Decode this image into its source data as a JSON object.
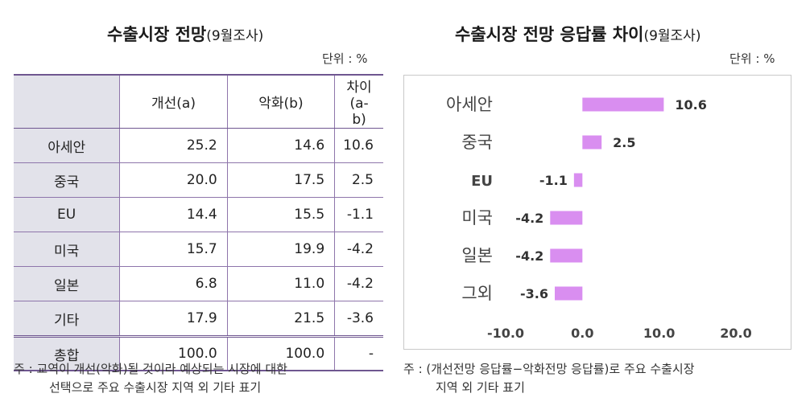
{
  "left": {
    "title": "수출시장 전망",
    "title_sub": "(9월조사)",
    "unit": "단위 : %",
    "table": {
      "headers": [
        "",
        "개선(a)",
        "악화(b)",
        "차이(a-b)"
      ],
      "rows": [
        [
          "아세안",
          "25.2",
          "14.6",
          "10.6"
        ],
        [
          "중국",
          "20.0",
          "17.5",
          "2.5"
        ],
        [
          "EU",
          "14.4",
          "15.5",
          "-1.1"
        ],
        [
          "미국",
          "15.7",
          "19.9",
          "-4.2"
        ],
        [
          "일본",
          "6.8",
          "11.0",
          "-4.2"
        ],
        [
          "기타",
          "17.9",
          "21.5",
          "-3.6"
        ]
      ],
      "total": [
        "총합",
        "100.0",
        "100.0",
        "-"
      ]
    },
    "note_line1": "주 : 교역이 개선(악화)될 것이라 예상되는 시장에 대한",
    "note_line2": "선택으로 주요 수출시장 지역 외 기타 표기"
  },
  "right": {
    "title": "수출시장 전망 응답률 차이",
    "title_sub": "(9월조사)",
    "unit": "단위 : %",
    "note_line1": "주 : (개선전망 응답률−악화전망 응답률)로 주요 수출시장",
    "note_line2": "지역 외 기타 표기"
  },
  "chart_data": {
    "type": "bar",
    "orientation": "horizontal",
    "categories": [
      "아세안",
      "중국",
      "EU",
      "미국",
      "일본",
      "그외"
    ],
    "values": [
      10.6,
      2.5,
      -1.1,
      -4.2,
      -4.2,
      -3.6
    ],
    "value_labels": [
      "10.6",
      "2.5",
      "-1.1",
      "-4.2",
      "-4.2",
      "-3.6"
    ],
    "xlim": [
      -10,
      20
    ],
    "xticks": [
      -10,
      0,
      10,
      20
    ],
    "xtick_labels": [
      "-10.0",
      "0.0",
      "10.0",
      "20.0"
    ],
    "bar_color": "#d98ef0",
    "grid": false,
    "title": "",
    "xlabel": "",
    "ylabel": ""
  }
}
